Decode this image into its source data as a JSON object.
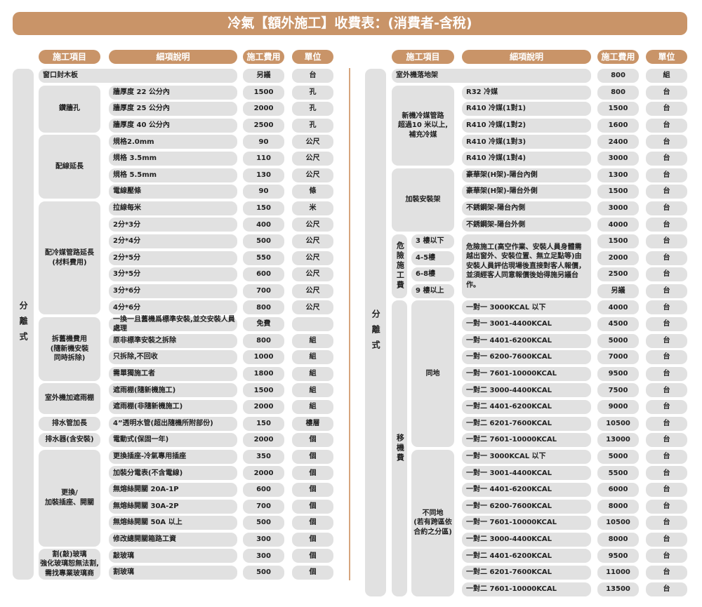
{
  "title": "冷氣【額外施工】收費表：(消費者-含稅)",
  "headers": [
    "施工項目",
    "細項說明",
    "施工費用",
    "單位"
  ],
  "left": {
    "group": "分離式",
    "items": [
      {
        "label": "鑽牆孔",
        "start": 1,
        "span": 3
      },
      {
        "label": "配線延長",
        "start": 4,
        "span": 4
      },
      {
        "label": "配冷媒管路延長\n(材料費用)",
        "start": 8,
        "span": 7
      },
      {
        "label": "拆舊機費用\n(隨新機安裝\n同時拆除)",
        "start": 15,
        "span": 4
      },
      {
        "label": "室外機加遮雨棚",
        "start": 19,
        "span": 2
      },
      {
        "label": "排水管加長",
        "start": 21,
        "span": 1
      },
      {
        "label": "排水器(含安裝)",
        "start": 22,
        "span": 1
      },
      {
        "label": "更換/\n加裝插座、開關",
        "start": 23,
        "span": 6
      },
      {
        "label": "割(敲)玻璃\n強化玻璃恕無法割,\n需找專業玻璃商",
        "start": 29,
        "span": 2
      }
    ],
    "rows": [
      {
        "desc": "窗口封木板",
        "fee": "另議",
        "unit": "台",
        "full": true
      },
      {
        "desc": "牆厚度 22 公分內",
        "fee": "1500",
        "unit": "孔"
      },
      {
        "desc": "牆厚度 25 公分內",
        "fee": "2000",
        "unit": "孔"
      },
      {
        "desc": "牆厚度 40 公分內",
        "fee": "2500",
        "unit": "孔"
      },
      {
        "desc": "規格2.0mm",
        "fee": "90",
        "unit": "公尺"
      },
      {
        "desc": "規格 3.5mm",
        "fee": "110",
        "unit": "公尺"
      },
      {
        "desc": "規格 5.5mm",
        "fee": "130",
        "unit": "公尺"
      },
      {
        "desc": "電線壓條",
        "fee": "90",
        "unit": "條"
      },
      {
        "desc": "拉線每米",
        "fee": "150",
        "unit": "米"
      },
      {
        "desc": "2分*3分",
        "fee": "400",
        "unit": "公尺"
      },
      {
        "desc": "2分*4分",
        "fee": "500",
        "unit": "公尺"
      },
      {
        "desc": "2分*5分",
        "fee": "550",
        "unit": "公尺"
      },
      {
        "desc": "3分*5分",
        "fee": "600",
        "unit": "公尺"
      },
      {
        "desc": "3分*6分",
        "fee": "700",
        "unit": "公尺"
      },
      {
        "desc": "4分*6分",
        "fee": "800",
        "unit": "公尺"
      },
      {
        "desc": "一換一且舊機爲標準安裝,並交安裝人員處理",
        "fee": "免費",
        "unit": ""
      },
      {
        "desc": "原非標準安裝之拆除",
        "fee": "800",
        "unit": "組"
      },
      {
        "desc": "只拆除,不回收",
        "fee": "1000",
        "unit": "組"
      },
      {
        "desc": "需單獨施工者",
        "fee": "1800",
        "unit": "組"
      },
      {
        "desc": "遮雨棚(隨新機施工)",
        "fee": "1500",
        "unit": "組"
      },
      {
        "desc": "遮雨棚(非隨新機施工)",
        "fee": "2000",
        "unit": "組"
      },
      {
        "desc": "4”透明水管(超出隨機所附部份)",
        "fee": "150",
        "unit": "樓層"
      },
      {
        "desc": "電動式(保固一年)",
        "fee": "2000",
        "unit": "個"
      },
      {
        "desc": "更換插座-冷氣專用插座",
        "fee": "350",
        "unit": "個"
      },
      {
        "desc": "加裝分電表(不含電線)",
        "fee": "2000",
        "unit": "個"
      },
      {
        "desc": "無熔絲開關 20A-1P",
        "fee": "600",
        "unit": "個"
      },
      {
        "desc": "無熔絲開關 30A-2P",
        "fee": "700",
        "unit": "個"
      },
      {
        "desc": "無熔絲開關 50A 以上",
        "fee": "500",
        "unit": "個"
      },
      {
        "desc": "修改總開關箱路工資",
        "fee": "300",
        "unit": "個"
      },
      {
        "desc": "敲玻璃",
        "fee": "300",
        "unit": "個"
      },
      {
        "desc": "割玻璃",
        "fee": "500",
        "unit": "個"
      }
    ]
  },
  "right": {
    "group": "分離式",
    "danger_label": "危險施工費",
    "move_label": "移機費",
    "danger_desc": "危險施工(高空作業、安裝人員身體需越出窗外、安裝位置、無立足點等)由安裝人員評估現場後直接對客人報價，並須經客人同意報價後始得施另議台作。",
    "items": [
      {
        "label": "新機冷媒管路\n超過10 米以上,\n補充冷媒",
        "start": 1,
        "span": 5
      },
      {
        "label": "加裝安裝架",
        "start": 6,
        "span": 4
      },
      {
        "label": "同地",
        "start": 14,
        "span": 9
      },
      {
        "label": "不同地\n(若有跨區依\n合約之分區)",
        "start": 23,
        "span": 9
      }
    ],
    "floors": [
      "3 樓以下",
      "4-5樓",
      "6-8樓",
      "9 樓以上"
    ],
    "rows": [
      {
        "desc": "室外機落地架",
        "fee": "800",
        "unit": "組",
        "full": true
      },
      {
        "desc": "R32 冷媒",
        "fee": "800",
        "unit": "台"
      },
      {
        "desc": "R410 冷媒(1對1)",
        "fee": "1500",
        "unit": "台"
      },
      {
        "desc": "R410 冷媒(1對2)",
        "fee": "1600",
        "unit": "台"
      },
      {
        "desc": "R410 冷媒(1對3)",
        "fee": "2400",
        "unit": "台"
      },
      {
        "desc": "R410 冷媒(1對4)",
        "fee": "3000",
        "unit": "台"
      },
      {
        "desc": "豪華架(H架)-陽台內側",
        "fee": "1300",
        "unit": "台"
      },
      {
        "desc": "豪華架(H架)-陽台外側",
        "fee": "1500",
        "unit": "台"
      },
      {
        "desc": "不銹鋼架-陽台內側",
        "fee": "3000",
        "unit": "台"
      },
      {
        "desc": "不銹鋼架-陽台外側",
        "fee": "4000",
        "unit": "台"
      },
      {
        "desc": "",
        "fee": "1500",
        "unit": "台"
      },
      {
        "desc": "",
        "fee": "2000",
        "unit": "台"
      },
      {
        "desc": "",
        "fee": "2500",
        "unit": "台"
      },
      {
        "desc": "",
        "fee": "另議",
        "unit": "台"
      },
      {
        "desc": "一對一 3000KCAL 以下",
        "fee": "4000",
        "unit": "台"
      },
      {
        "desc": "一對一 3001-4400KCAL",
        "fee": "4500",
        "unit": "台"
      },
      {
        "desc": "一對一 4401-6200KCAL",
        "fee": "5000",
        "unit": "台"
      },
      {
        "desc": "一對一 6200-7600KCAL",
        "fee": "7000",
        "unit": "台"
      },
      {
        "desc": "一對一 7601-10000KCAL",
        "fee": "9500",
        "unit": "台"
      },
      {
        "desc": "一對二 3000-4400KCAL",
        "fee": "7500",
        "unit": "台"
      },
      {
        "desc": "一對二 4401-6200KCAL",
        "fee": "9000",
        "unit": "台"
      },
      {
        "desc": "一對二 6201-7600KCAL",
        "fee": "10500",
        "unit": "台"
      },
      {
        "desc": "一對二 7601-10000KCAL",
        "fee": "13000",
        "unit": "台"
      },
      {
        "desc": "一對一 3000KCAL 以下",
        "fee": "5000",
        "unit": "台"
      },
      {
        "desc": "一對一 3001-4400KCAL",
        "fee": "5500",
        "unit": "台"
      },
      {
        "desc": "一對一 4401-6200KCAL",
        "fee": "6000",
        "unit": "台"
      },
      {
        "desc": "一對一 6200-7600KCAL",
        "fee": "8000",
        "unit": "台"
      },
      {
        "desc": "一對一 7601-10000KCAL",
        "fee": "10500",
        "unit": "台"
      },
      {
        "desc": "一對二 3000-4400KCAL",
        "fee": "8000",
        "unit": "台"
      },
      {
        "desc": "一對二 4401-6200KCAL",
        "fee": "9500",
        "unit": "台"
      },
      {
        "desc": "一對二 6201-7600KCAL",
        "fee": "11000",
        "unit": "台"
      },
      {
        "desc": "一對二 7601-10000KCAL",
        "fee": "13500",
        "unit": "台"
      }
    ]
  },
  "colors": {
    "accent": "#c99468",
    "cell": "#e1e1e1"
  }
}
